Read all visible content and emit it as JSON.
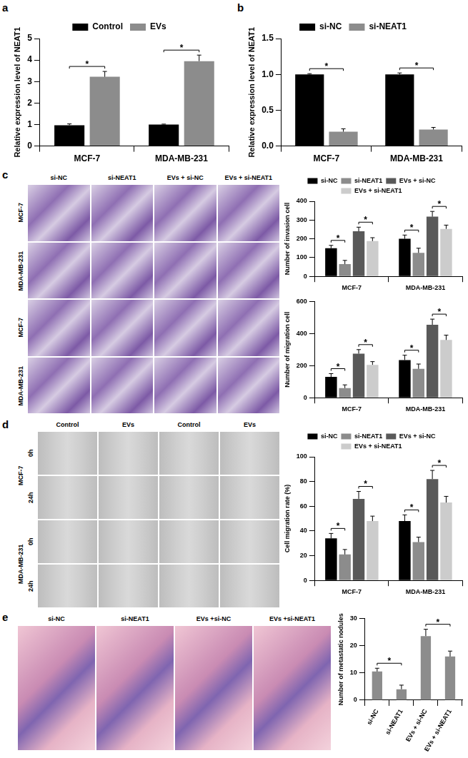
{
  "panel_labels": [
    "a",
    "b",
    "c",
    "d",
    "e"
  ],
  "chart_data": [
    {
      "type": "bar",
      "y_label": "Relative expression level of NEAT1",
      "categories": [
        "MCF-7",
        "MDA-MB-231"
      ],
      "series": [
        {
          "name": "Control",
          "color": "#000000",
          "values": [
            0.97,
            1.0
          ],
          "errors": [
            0.06,
            0.02
          ]
        },
        {
          "name": "EVs",
          "color": "#8c8c8c",
          "values": [
            3.22,
            3.95
          ],
          "errors": [
            0.25,
            0.28
          ]
        }
      ],
      "ylim": [
        0,
        5
      ],
      "yticks": [
        0,
        1,
        2,
        3,
        4,
        5
      ],
      "grid": false,
      "legend": "top",
      "annotations": [
        {
          "category": 0,
          "series": [
            0,
            1
          ],
          "text": "*"
        },
        {
          "category": 1,
          "series": [
            0,
            1
          ],
          "text": "*"
        }
      ]
    },
    {
      "type": "bar",
      "y_label": "Relative expression level of NEAT1",
      "categories": [
        "MCF-7",
        "MDA-MB-231"
      ],
      "series": [
        {
          "name": "si-NC",
          "color": "#000000",
          "values": [
            1.0,
            1.0
          ],
          "errors": [
            0.01,
            0.02
          ]
        },
        {
          "name": "si-NEAT1",
          "color": "#8c8c8c",
          "values": [
            0.2,
            0.23
          ],
          "errors": [
            0.04,
            0.03
          ]
        }
      ],
      "ylim": [
        0,
        1.5
      ],
      "yticks": [
        {
          "value": 0,
          "label": "0.0"
        },
        {
          "value": 0.5,
          "label": "0.5"
        },
        {
          "value": 1,
          "label": "1.0"
        },
        {
          "value": 1.5,
          "label": "1.5"
        }
      ],
      "grid": false,
      "legend": "top",
      "annotations": [
        {
          "category": 0,
          "series": [
            0,
            1
          ],
          "text": "*"
        },
        {
          "category": 1,
          "series": [
            0,
            1
          ],
          "text": "*"
        }
      ]
    },
    {
      "type": "bar",
      "y_label": "Number of invasion cell",
      "categories": [
        "MCF-7",
        "MDA-MB-231"
      ],
      "series": [
        {
          "name": "si-NC",
          "color": "#000000",
          "values": [
            150,
            200
          ],
          "errors": [
            15,
            20
          ]
        },
        {
          "name": "si-NEAT1",
          "color": "#8c8c8c",
          "values": [
            65,
            125
          ],
          "errors": [
            20,
            25
          ]
        },
        {
          "name": "EVs + si-NC",
          "color": "#595959",
          "values": [
            240,
            318
          ],
          "errors": [
            22,
            28
          ]
        },
        {
          "name": "EVs + si-NEAT1",
          "color": "#cccccc",
          "values": [
            188,
            253
          ],
          "errors": [
            18,
            20
          ]
        }
      ],
      "ylim": [
        0,
        400
      ],
      "yticks": [
        0,
        100,
        200,
        300,
        400
      ],
      "grid": false,
      "legend": "top",
      "annotations": [
        {
          "category": 0,
          "series": [
            0,
            1
          ],
          "text": "*"
        },
        {
          "category": 0,
          "series": [
            2,
            3
          ],
          "text": "*"
        },
        {
          "category": 1,
          "series": [
            0,
            1
          ],
          "text": "*"
        },
        {
          "category": 1,
          "series": [
            2,
            3
          ],
          "text": "*"
        }
      ]
    },
    {
      "type": "bar",
      "y_label": "Number of migration cell",
      "categories": [
        "MCF-7",
        "MDA-MB-231"
      ],
      "series": [
        {
          "name": "si-NC",
          "color": "#000000",
          "values": [
            130,
            235
          ],
          "errors": [
            20,
            30
          ]
        },
        {
          "name": "si-NEAT1",
          "color": "#8c8c8c",
          "values": [
            60,
            180
          ],
          "errors": [
            20,
            30
          ]
        },
        {
          "name": "EVs + si-NC",
          "color": "#595959",
          "values": [
            275,
            455
          ],
          "errors": [
            25,
            35
          ]
        },
        {
          "name": "EVs + si-NEAT1",
          "color": "#cccccc",
          "values": [
            205,
            360
          ],
          "errors": [
            20,
            30
          ]
        }
      ],
      "ylim": [
        0,
        600
      ],
      "yticks": [
        0,
        200,
        400,
        600
      ],
      "grid": false,
      "annotations": [
        {
          "category": 0,
          "series": [
            0,
            1
          ],
          "text": "*"
        },
        {
          "category": 0,
          "series": [
            2,
            3
          ],
          "text": "*"
        },
        {
          "category": 1,
          "series": [
            0,
            1
          ],
          "text": "*"
        },
        {
          "category": 1,
          "series": [
            2,
            3
          ],
          "text": "*"
        }
      ]
    },
    {
      "type": "bar",
      "y_label": "Cell migration rate (%)",
      "categories": [
        "MCF-7",
        "MDA-MB-231"
      ],
      "series": [
        {
          "name": "si-NC",
          "color": "#000000",
          "values": [
            34,
            48
          ],
          "errors": [
            4,
            5
          ]
        },
        {
          "name": "si-NEAT1",
          "color": "#8c8c8c",
          "values": [
            21,
            31
          ],
          "errors": [
            4,
            4
          ]
        },
        {
          "name": "EVs + si-NC",
          "color": "#595959",
          "values": [
            66,
            82
          ],
          "errors": [
            6,
            7
          ]
        },
        {
          "name": "EVs + si-NEAT1",
          "color": "#cccccc",
          "values": [
            48,
            63
          ],
          "errors": [
            4,
            5
          ]
        }
      ],
      "ylim": [
        0,
        100
      ],
      "yticks": [
        0,
        20,
        40,
        60,
        80,
        100
      ],
      "grid": false,
      "legend": "top",
      "annotations": [
        {
          "category": 0,
          "series": [
            0,
            1
          ],
          "text": "*"
        },
        {
          "category": 0,
          "series": [
            2,
            3
          ],
          "text": "*"
        },
        {
          "category": 1,
          "series": [
            0,
            1
          ],
          "text": "*"
        },
        {
          "category": 1,
          "series": [
            2,
            3
          ],
          "text": "*"
        }
      ]
    },
    {
      "type": "bar",
      "y_label": "Number of metastatic nodules",
      "categories": [
        "si-NC",
        "si-NEAT1",
        "EVs + si-NC",
        "EVs + si-NEAT1"
      ],
      "values": [
        10.5,
        4,
        23.5,
        16
      ],
      "errors": [
        1.2,
        1.5,
        2.5,
        2
      ],
      "color": "#8c8c8c",
      "ylim": [
        0,
        30
      ],
      "yticks": [
        0,
        10,
        20,
        30
      ],
      "grid": false,
      "annotations": [
        {
          "categories": [
            0,
            1
          ],
          "text": "*"
        },
        {
          "categories": [
            2,
            3
          ],
          "text": "*"
        }
      ]
    }
  ],
  "image_panels": [
    {
      "panel": "c",
      "columns": [
        "si-NC",
        "si-NEAT1",
        "EVs + si-NC",
        "EVs + si-NEAT1"
      ],
      "groups": [
        {
          "rows": [
            "MCF-7",
            "MDA-MB-231"
          ]
        },
        {
          "rows": [
            "MCF-7",
            "MDA-MB-231"
          ]
        }
      ]
    },
    {
      "panel": "d",
      "columns": [
        "Control",
        "EVs",
        "Control",
        "EVs"
      ],
      "groups": [
        {
          "name": "MCF-7",
          "rows": [
            "0h",
            "24h"
          ]
        },
        {
          "name": "MDA-MB-231",
          "rows": [
            "0h",
            "24h"
          ]
        }
      ]
    },
    {
      "panel": "e",
      "columns": [
        "si-NC",
        "si-NEAT1",
        "EVs +si-NC",
        "EVs +si-NEAT1"
      ],
      "groups": [
        {
          "rows": [
            null
          ]
        }
      ]
    }
  ]
}
